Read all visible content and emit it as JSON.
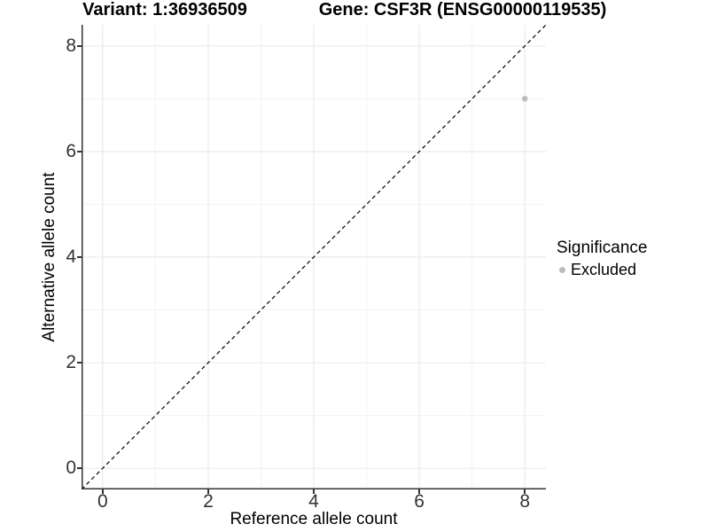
{
  "chart_data": {
    "type": "scatter",
    "title_left": "Variant: 1:36936509",
    "title_right": "Gene: CSF3R (ENSG00000119535)",
    "xlabel": "Reference allele count",
    "ylabel": "Alternative allele count",
    "xlim": [
      -0.4,
      8.4
    ],
    "ylim": [
      -0.4,
      8.4
    ],
    "xticks": [
      0,
      2,
      4,
      6,
      8
    ],
    "yticks": [
      0,
      2,
      4,
      6,
      8
    ],
    "minor_xticks": [
      1,
      3,
      5,
      7
    ],
    "minor_yticks": [
      1,
      3,
      5,
      7
    ],
    "grid": "major+minor",
    "legend_position": "right",
    "reference_line": {
      "kind": "identity y=x",
      "style": "dashed",
      "color": "#000000"
    },
    "series": [
      {
        "name": "Excluded",
        "color": "#bcbcbc",
        "points": [
          {
            "x": 8,
            "y": 7
          }
        ]
      }
    ],
    "legend": {
      "title": "Significance",
      "items": [
        {
          "label": "Excluded",
          "color": "#bcbcbc"
        }
      ]
    }
  },
  "colors": {
    "background": "#ffffff",
    "grid_major": "#e7e7e7",
    "grid_minor": "#f3f3f3",
    "axis_line": "#333333",
    "tick_label": "#333333",
    "dashed_line": "#000000",
    "point": "#bcbcbc"
  }
}
